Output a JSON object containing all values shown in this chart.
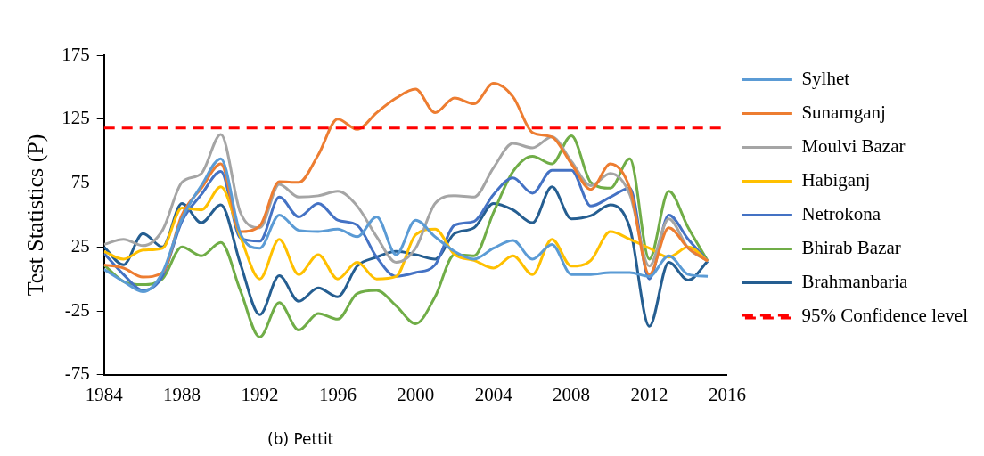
{
  "chart_data": {
    "type": "line",
    "ylabel": "Test Statistics (P)",
    "x": [
      1984,
      1985,
      1986,
      1987,
      1988,
      1989,
      1990,
      1991,
      1992,
      1993,
      1994,
      1995,
      1996,
      1997,
      1998,
      1999,
      2000,
      2001,
      2002,
      2003,
      2004,
      2005,
      2006,
      2007,
      2008,
      2009,
      2010,
      2011,
      2012,
      2013,
      2014,
      2015
    ],
    "series": [
      {
        "name": "Sylhet",
        "color": "#5b9bd5",
        "values": [
          7.5,
          -2,
          -10,
          5,
          47,
          73,
          94,
          35.5,
          24,
          50,
          38,
          37,
          39,
          33,
          48.5,
          19,
          46,
          33,
          21.5,
          15.5,
          24,
          30,
          15.5,
          27,
          3.5,
          3.5,
          5,
          5,
          2,
          18,
          3.5,
          2
        ]
      },
      {
        "name": "Sunamganj",
        "color": "#ed7d31",
        "values": [
          11,
          8.5,
          1.5,
          5,
          50,
          71,
          90,
          37,
          41.5,
          76,
          75.5,
          97,
          125,
          117,
          130,
          141.5,
          148.5,
          130,
          141.5,
          137,
          153,
          142.5,
          114.5,
          111,
          90,
          70,
          90,
          71,
          3.5,
          40,
          24,
          14
        ]
      },
      {
        "name": "Moulvi Bazar",
        "color": "#a5a5a5",
        "values": [
          27,
          31,
          26,
          38,
          75.5,
          82.5,
          113,
          52,
          40,
          74,
          64,
          65,
          68.5,
          57,
          33,
          13,
          24,
          59,
          65,
          64,
          87,
          106,
          102.5,
          111,
          92,
          73,
          82.5,
          66,
          10,
          47,
          24,
          14
        ]
      },
      {
        "name": "Habiganj",
        "color": "#ffc000",
        "values": [
          21.5,
          15.5,
          22.5,
          24,
          55.5,
          54,
          72,
          33,
          0,
          31,
          3.5,
          19,
          0,
          13,
          0,
          2,
          34.5,
          39,
          19,
          14.5,
          8.5,
          18,
          3.5,
          31,
          10,
          14.5,
          37,
          31,
          24,
          17,
          25,
          14
        ]
      },
      {
        "name": "Netrokona",
        "color": "#4472c4",
        "values": [
          20,
          3.5,
          -9,
          2,
          45,
          66,
          84,
          32,
          29.5,
          64,
          48.5,
          59,
          46,
          42,
          17,
          2,
          5,
          11,
          42,
          45,
          66,
          79,
          67,
          85,
          85,
          57,
          64,
          71,
          0,
          50,
          31,
          14
        ]
      },
      {
        "name": "Bhirab Bazar",
        "color": "#70ad47",
        "values": [
          11,
          -2,
          -4.5,
          0,
          25,
          18,
          28.5,
          -9,
          -45.5,
          -18.5,
          -40,
          -27,
          -31.5,
          -11.5,
          -9,
          -21,
          -35,
          -14,
          19,
          18,
          52,
          84,
          96,
          90,
          112,
          75.5,
          71,
          94,
          15.5,
          68.5,
          40,
          14
        ]
      },
      {
        "name": "Brahmanbaria",
        "color": "#255e91",
        "values": [
          25,
          11,
          35.5,
          25,
          59,
          44,
          58,
          12,
          -28,
          2.5,
          -17.5,
          -7,
          -14,
          10,
          17,
          21.5,
          19,
          15.5,
          35.5,
          40,
          59,
          54,
          44,
          72,
          47,
          49.5,
          58,
          40,
          -37,
          13,
          -1,
          14
        ]
      }
    ],
    "ref_lines": [
      {
        "axis": "y",
        "value": 118,
        "label": "95% Confidence level",
        "color": "#ff0000",
        "line_style": "dashed"
      }
    ],
    "xlim": [
      1984,
      2016
    ],
    "xticks": [
      1984,
      1988,
      1992,
      1996,
      2000,
      2004,
      2008,
      2012,
      2016
    ],
    "ylim": [
      -75,
      175
    ],
    "yticks": [
      -75,
      -25,
      25,
      75,
      125,
      175
    ],
    "annotations": [
      "(b) Pettit"
    ],
    "grid": false,
    "legend": "right",
    "line_style": "solid",
    "marker": "none"
  }
}
